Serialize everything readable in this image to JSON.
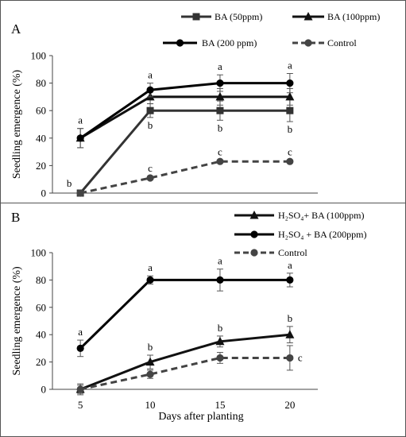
{
  "chart_data": [
    {
      "type": "line",
      "panel_label": "A",
      "xlabel": "",
      "ylabel": "Seedling emergence (%)",
      "x": [
        5,
        10,
        15,
        20
      ],
      "xlim": [
        3,
        22
      ],
      "ylim": [
        0,
        100
      ],
      "yticks": [
        0,
        20,
        40,
        60,
        80,
        100
      ],
      "show_xticks": false,
      "grid": false,
      "legend": "top",
      "series": [
        {
          "name": "BA (50ppm)",
          "marker": "square",
          "dash": "solid",
          "color": "#333333",
          "values": [
            0,
            60,
            60,
            60
          ],
          "error": [
            0,
            5,
            7,
            8
          ],
          "letters": [
            "b",
            "b",
            "b",
            "b"
          ],
          "letter_pos": [
            "left",
            "below",
            "below",
            "below"
          ]
        },
        {
          "name": "BA (100ppm)",
          "marker": "triangle",
          "dash": "solid",
          "color": "#111111",
          "values": [
            40,
            70,
            70,
            70
          ],
          "error": [
            7,
            5,
            6,
            6
          ],
          "letters": [
            "",
            "",
            "",
            ""
          ],
          "letter_pos": [
            "",
            "",
            "",
            ""
          ]
        },
        {
          "name": "BA (200 ppm)",
          "marker": "circle",
          "dash": "solid",
          "color": "#000000",
          "values": [
            40,
            75,
            80,
            80
          ],
          "error": [
            7,
            5,
            6,
            7
          ],
          "letters": [
            "a",
            "a",
            "a",
            "a"
          ],
          "letter_pos": [
            "above",
            "above",
            "above",
            "above"
          ]
        },
        {
          "name": "Control",
          "marker": "circle",
          "dash": "dash",
          "color": "#444444",
          "values": [
            0,
            11,
            23,
            23
          ],
          "error": [
            0,
            1,
            1,
            1
          ],
          "letters": [
            "",
            "c",
            "c",
            "c"
          ],
          "letter_pos": [
            "",
            "above",
            "above",
            "above"
          ]
        }
      ]
    },
    {
      "type": "line",
      "panel_label": "B",
      "xlabel": "Days after planting",
      "ylabel": "Seedling emergence (%)",
      "x": [
        5,
        10,
        15,
        20
      ],
      "xlim": [
        3,
        22
      ],
      "ylim": [
        0,
        100
      ],
      "yticks": [
        0,
        20,
        40,
        60,
        80,
        100
      ],
      "xticks": [
        "5",
        "10",
        "15",
        "20"
      ],
      "show_xticks": true,
      "grid": false,
      "legend": "top-right",
      "series": [
        {
          "name": "H₂SO₄+ BA (100ppm)",
          "marker": "triangle",
          "dash": "solid",
          "color": "#111111",
          "values": [
            0,
            20,
            35,
            40
          ],
          "error": [
            4,
            5,
            4,
            6
          ],
          "letters": [
            "",
            "b",
            "b",
            "b"
          ],
          "letter_pos": [
            "",
            "above",
            "above",
            "above"
          ]
        },
        {
          "name": "H₂SO₄ + BA (200ppm)",
          "marker": "circle",
          "dash": "solid",
          "color": "#000000",
          "values": [
            30,
            80,
            80,
            80
          ],
          "error": [
            6,
            3,
            8,
            5
          ],
          "letters": [
            "a",
            "a",
            "a",
            "a"
          ],
          "letter_pos": [
            "above",
            "above",
            "above",
            "above"
          ]
        },
        {
          "name": "Control",
          "marker": "circle",
          "dash": "dash",
          "color": "#444444",
          "values": [
            0,
            11,
            23,
            23
          ],
          "error": [
            3,
            3,
            4,
            9
          ],
          "letters": [
            "",
            "",
            "",
            "c"
          ],
          "letter_pos": [
            "",
            "",
            "",
            "right"
          ]
        }
      ]
    }
  ]
}
